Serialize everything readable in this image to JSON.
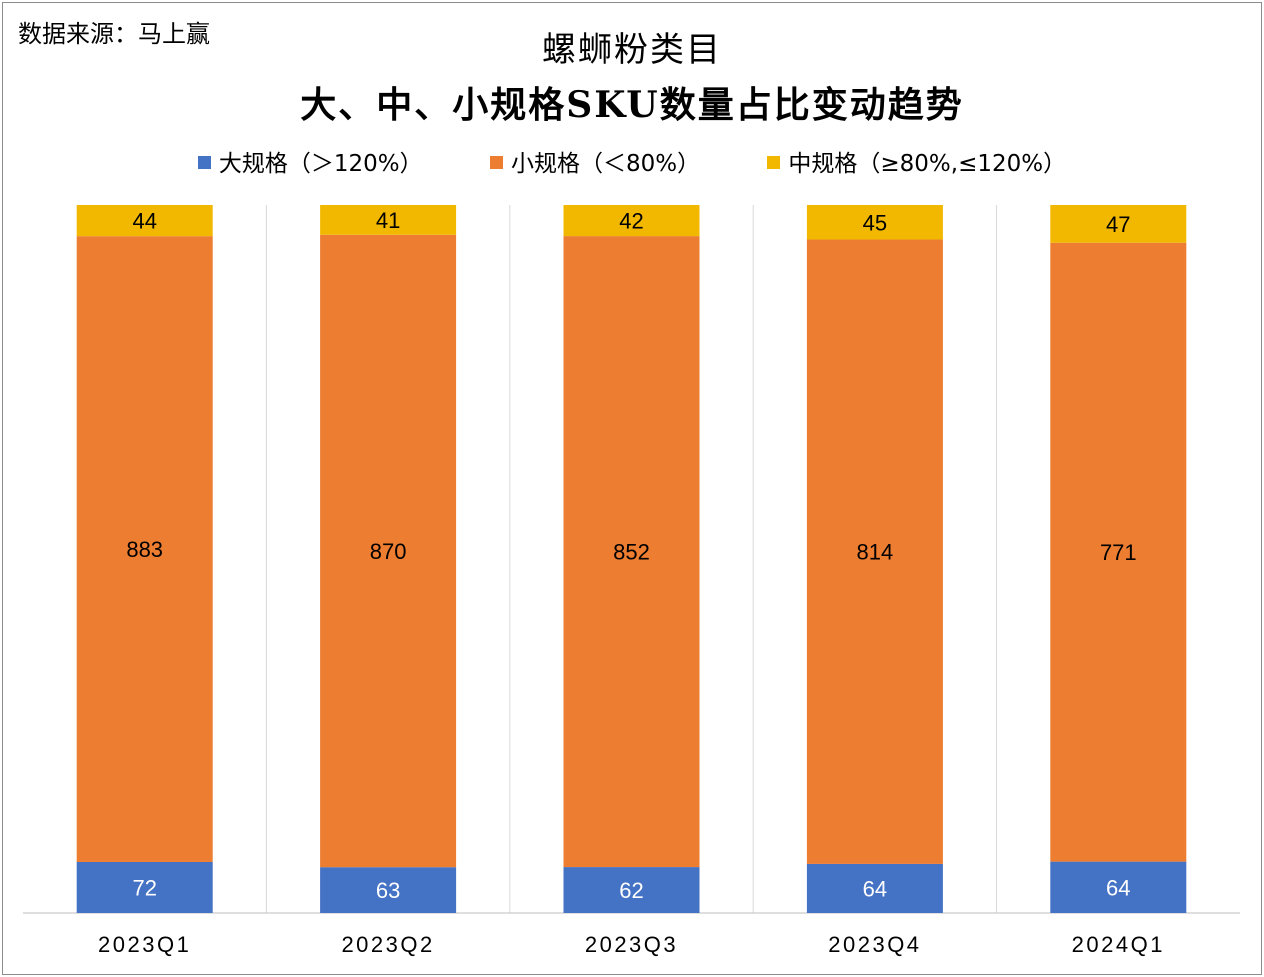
{
  "source_note": "数据来源：马上赢",
  "chart_data": {
    "type": "bar",
    "stacked": true,
    "title": "螺蛳粉类目",
    "subtitle": "大、中、小规格SKU数量占比变动趋势",
    "categories": [
      "2023Q1",
      "2023Q2",
      "2023Q3",
      "2023Q4",
      "2024Q1"
    ],
    "series": [
      {
        "name": "大规格（＞120%）",
        "color": "#4472C4",
        "values": [
          72,
          63,
          62,
          64,
          64
        ]
      },
      {
        "name": "小规格（＜80%）",
        "color": "#ED7D31",
        "values": [
          883,
          870,
          852,
          814,
          771
        ]
      },
      {
        "name": "中规格（≥80%,≤120%）",
        "color": "#F2B800",
        "values": [
          44,
          41,
          42,
          45,
          47
        ]
      }
    ],
    "normalized": "percent",
    "xlabel": "",
    "ylabel": "",
    "grid": "vertical separators",
    "legend_position": "top"
  }
}
